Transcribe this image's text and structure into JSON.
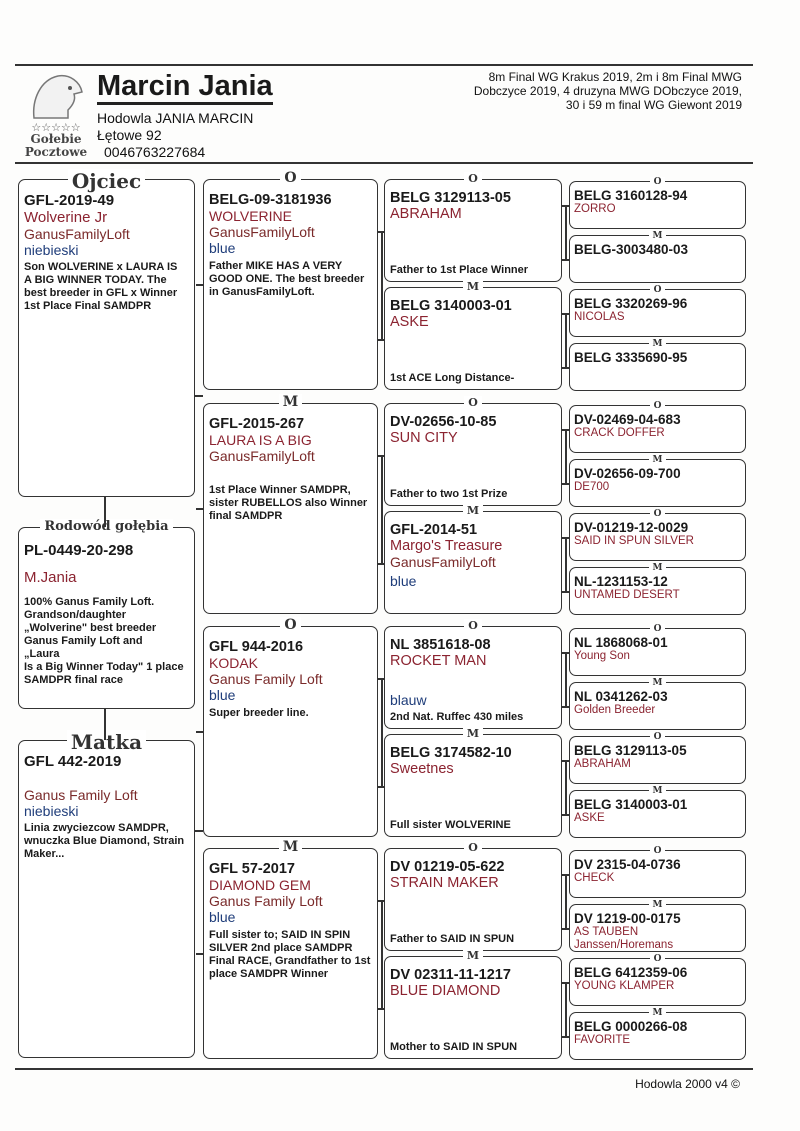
{
  "header": {
    "title": "Marcin Jania",
    "subtitle": "Hodowla JANIA MARCIN",
    "address": "Łętowe 92",
    "phone": "0046763227684",
    "logo_text": [
      "☆☆☆☆☆",
      "Gołebie",
      "Pocztowe"
    ],
    "achievements": [
      "8m Final  WG Krakus 2019, 2m i 8m Final MWG",
      "Dobczyce 2019, 4 druzyna MWG DObczyce 2019,",
      "30 i 59 m final WG Giewont 2019"
    ]
  },
  "col1": [
    {
      "label": "Ojciec",
      "ring": "GFL-2019-49",
      "name": "Wolverine Jr",
      "loft": "GanusFamilyLoft",
      "color": "niebieski",
      "note": "Son WOLVERINE x LAURA IS\nA BIG WINNER TODAY. The best breeder in GFL x Winner 1st Place Final SAMDPR"
    },
    {
      "label": "Rodowód gołębia",
      "ring": "PL-0449-20-298",
      "name": "M.Jania",
      "loft": "",
      "color": "",
      "note": "100% Ganus Family Loft. Grandson/daughter\n„Wolverine\" best breeder Ganus Family Loft and\n„Laura\nIs a Big Winner Today\" 1 place SAMDPR final race"
    },
    {
      "label": "Matka",
      "ring": "GFL 442-2019",
      "name": "",
      "loft": "Ganus Family Loft",
      "color": "niebieski",
      "note": "Linia zwyciezcow SAMDPR, wnuczka Blue Diamond, Strain Maker..."
    }
  ],
  "col2": [
    {
      "sex": "O",
      "ring": "BELG-09-3181936",
      "name": "WOLVERINE",
      "loft": "GanusFamilyLoft",
      "color": "blue",
      "note": "Father MIKE HAS A VERY GOOD ONE. The best breeder\nin GanusFamilyLoft."
    },
    {
      "sex": "M",
      "ring": "GFL-2015-267",
      "name": "LAURA IS A BIG",
      "loft": "GanusFamilyLoft",
      "color": "",
      "note": "1st Place Winner SAMDPR, sister RUBELLOS also Winner final SAMDPR"
    },
    {
      "sex": "O",
      "ring": "GFL 944-2016",
      "name": "KODAK",
      "loft": "Ganus Family Loft",
      "color": "blue",
      "note": "Super breeder line."
    },
    {
      "sex": "M",
      "ring": "GFL 57-2017",
      "name": "DIAMOND GEM",
      "loft": "Ganus Family Loft",
      "color": "blue",
      "note": "Full sister to; SAID IN SPIN SILVER 2nd place SAMDPR Final RACE, Grandfather to 1st place SAMDPR Winner"
    }
  ],
  "col3": [
    {
      "sex": "O",
      "ring": "BELG 3129113-05",
      "name": "ABRAHAM",
      "loft": "",
      "color": "",
      "note": "Father to 1st Place Winner"
    },
    {
      "sex": "M",
      "ring": "BELG 3140003-01",
      "name": "ASKE",
      "loft": "",
      "color": "",
      "note": "1st ACE Long Distance-"
    },
    {
      "sex": "O",
      "ring": "DV-02656-10-85",
      "name": "SUN CITY",
      "loft": "",
      "color": "",
      "note": "Father to two 1st Prize"
    },
    {
      "sex": "M",
      "ring": "GFL-2014-51",
      "name": "Margo's Treasure",
      "loft": "GanusFamilyLoft",
      "color": "blue",
      "note": ""
    },
    {
      "sex": "O",
      "ring": "NL 3851618-08",
      "name": "ROCKET MAN",
      "loft": "",
      "color": "blauw",
      "note": "2nd Nat. Ruffec 430 miles"
    },
    {
      "sex": "M",
      "ring": "BELG 3174582-10",
      "name": "Sweetnes",
      "loft": "",
      "color": "",
      "note": "Full sister WOLVERINE"
    },
    {
      "sex": "O",
      "ring": "DV 01219-05-622",
      "name": "STRAIN MAKER",
      "loft": "",
      "color": "",
      "note": "Father to  SAID IN SPUN"
    },
    {
      "sex": "M",
      "ring": "DV 02311-11-1217",
      "name": "BLUE DIAMOND",
      "loft": "",
      "color": "",
      "note": "Mother to SAID IN SPUN"
    }
  ],
  "col4": [
    {
      "sex": "O",
      "ring": "BELG 3160128-94",
      "name": "ZORRO",
      "extra": ""
    },
    {
      "sex": "M",
      "ring": "BELG-3003480-03",
      "name": "",
      "extra": ""
    },
    {
      "sex": "O",
      "ring": "BELG 3320269-96",
      "name": "NICOLAS",
      "extra": ""
    },
    {
      "sex": "M",
      "ring": "BELG 3335690-95",
      "name": "",
      "extra": ""
    },
    {
      "sex": "O",
      "ring": "DV-02469-04-683",
      "name": "CRACK DOFFER",
      "extra": ""
    },
    {
      "sex": "M",
      "ring": "DV-02656-09-700",
      "name": "DE700",
      "extra": ""
    },
    {
      "sex": "O",
      "ring": "DV-01219-12-0029",
      "name": "SAID IN SPUN SILVER",
      "extra": ""
    },
    {
      "sex": "M",
      "ring": "NL-1231153-12",
      "name": "UNTAMED DESERT",
      "extra": ""
    },
    {
      "sex": "O",
      "ring": "NL 1868068-01",
      "name": "Young Son",
      "extra": ""
    },
    {
      "sex": "M",
      "ring": "NL 0341262-03",
      "name": "Golden Breeder",
      "extra": ""
    },
    {
      "sex": "O",
      "ring": "BELG 3129113-05",
      "name": "ABRAHAM",
      "extra": ""
    },
    {
      "sex": "M",
      "ring": "BELG 3140003-01",
      "name": "ASKE",
      "extra": ""
    },
    {
      "sex": "O",
      "ring": "DV 2315-04-0736",
      "name": "CHECK",
      "extra": ""
    },
    {
      "sex": "M",
      "ring": "DV 1219-00-0175",
      "name": "AS TAUBEN",
      "extra": "Janssen/Horemans"
    },
    {
      "sex": "O",
      "ring": "BELG 6412359-06",
      "name": "YOUNG KLAMPER",
      "extra": ""
    },
    {
      "sex": "M",
      "ring": "BELG 0000266-08",
      "name": "FAVORITE",
      "extra": ""
    }
  ],
  "footer": {
    "text": "Hodowla 2000 v4 ©"
  }
}
